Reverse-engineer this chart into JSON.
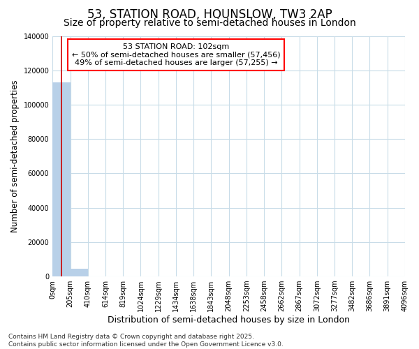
{
  "title": "53, STATION ROAD, HOUNSLOW, TW3 2AP",
  "subtitle": "Size of property relative to semi-detached houses in London",
  "xlabel": "Distribution of semi-detached houses by size in London",
  "ylabel": "Number of semi-detached properties",
  "property_size": 102,
  "annotation_title": "53 STATION ROAD: 102sqm",
  "annotation_line2": "← 50% of semi-detached houses are smaller (57,456)",
  "annotation_line3": "49% of semi-detached houses are larger (57,255) →",
  "footer_line1": "Contains HM Land Registry data © Crown copyright and database right 2025.",
  "footer_line2": "Contains public sector information licensed under the Open Government Licence v3.0.",
  "bar_edges": [
    0,
    205,
    410,
    614,
    819,
    1024,
    1229,
    1434,
    1638,
    1843,
    2048,
    2253,
    2458,
    2662,
    2867,
    3072,
    3277,
    3482,
    3686,
    3891,
    4096
  ],
  "bar_heights": [
    113000,
    4500,
    0,
    0,
    0,
    0,
    0,
    0,
    0,
    0,
    0,
    0,
    0,
    0,
    0,
    0,
    0,
    0,
    0,
    0
  ],
  "bar_color": "#b8d0e8",
  "highlight_color": "#cc0000",
  "ylim": [
    0,
    140000
  ],
  "xlim": [
    0,
    4096
  ],
  "background_color": "#ffffff",
  "grid_color": "#c8dce8",
  "title_fontsize": 12,
  "subtitle_fontsize": 10,
  "tick_label_fontsize": 7,
  "ylabel_fontsize": 8.5,
  "xlabel_fontsize": 9,
  "footer_fontsize": 6.5
}
